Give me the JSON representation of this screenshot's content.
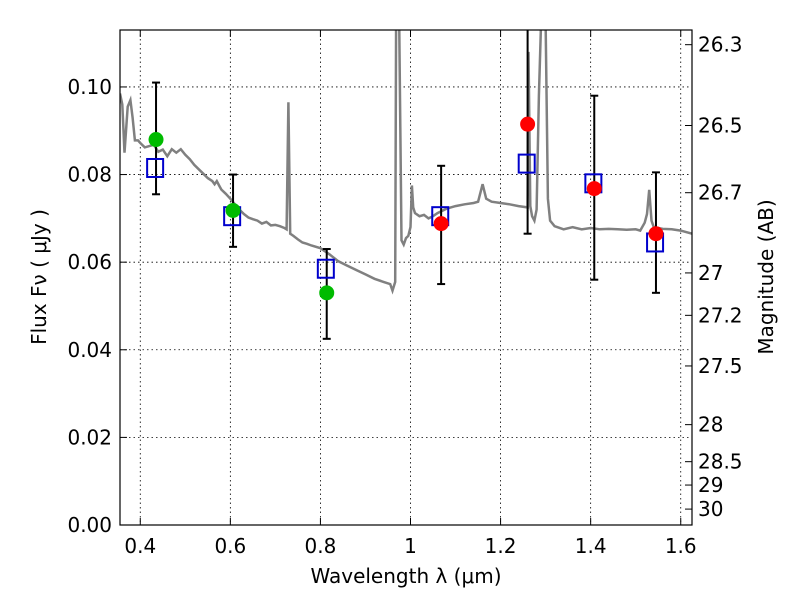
{
  "chart_data": {
    "type": "scatter",
    "xlabel": "Wavelength  λ (μm)",
    "ylabel": "Flux  Fν ( μJy )",
    "ylabel_right": "Magnitude (AB)",
    "xlim": [
      0.355,
      1.625
    ],
    "ylim": [
      0.0,
      0.113
    ],
    "x_ticks": [
      0.4,
      0.6,
      0.8,
      1.0,
      1.2,
      1.4,
      1.6
    ],
    "x_tick_labels": [
      "0.4",
      "0.6",
      "0.8",
      "1",
      "1.2",
      "1.4",
      "1.6"
    ],
    "y_ticks": [
      0.0,
      0.02,
      0.04,
      0.06,
      0.08,
      0.1
    ],
    "y_tick_labels": [
      "0.00",
      "0.02",
      "0.04",
      "0.06",
      "0.08",
      "0.10"
    ],
    "right_ticks": [
      {
        "mag": 26.3,
        "label": "26.3"
      },
      {
        "mag": 26.5,
        "label": "26.5"
      },
      {
        "mag": 26.7,
        "label": "26.7"
      },
      {
        "mag": 27.0,
        "label": "27"
      },
      {
        "mag": 27.2,
        "label": "27.2"
      },
      {
        "mag": 27.5,
        "label": "27.5"
      },
      {
        "mag": 28.0,
        "label": "28"
      },
      {
        "mag": 28.5,
        "label": "28.5"
      },
      {
        "mag": 29.0,
        "label": "29"
      },
      {
        "mag": 30.0,
        "label": "30"
      }
    ],
    "grid": true,
    "colors": {
      "model": "#808080",
      "green": "#00bb00",
      "red": "#ff0000",
      "square": "#0000cc",
      "errorbar": "#000000"
    },
    "observed_points": [
      {
        "x": 0.435,
        "y": 0.088,
        "yerr_low": 0.0755,
        "yerr_high": 0.101,
        "color": "green"
      },
      {
        "x": 0.606,
        "y": 0.0718,
        "yerr_low": 0.0635,
        "yerr_high": 0.08,
        "color": "green"
      },
      {
        "x": 0.814,
        "y": 0.053,
        "yerr_low": 0.0425,
        "yerr_high": 0.063,
        "color": "green"
      },
      {
        "x": 1.068,
        "y": 0.0688,
        "yerr_low": 0.055,
        "yerr_high": 0.082,
        "color": "red"
      },
      {
        "x": 1.26,
        "y": 0.0915,
        "yerr_low": 0.0665,
        "yerr_high": 0.116,
        "color": "red"
      },
      {
        "x": 1.408,
        "y": 0.0768,
        "yerr_low": 0.056,
        "yerr_high": 0.098,
        "color": "red"
      },
      {
        "x": 1.545,
        "y": 0.0665,
        "yerr_low": 0.053,
        "yerr_high": 0.0805,
        "color": "red"
      }
    ],
    "model_points": [
      {
        "x": 0.433,
        "y": 0.0815
      },
      {
        "x": 0.604,
        "y": 0.0705
      },
      {
        "x": 0.812,
        "y": 0.0585
      },
      {
        "x": 1.066,
        "y": 0.0705
      },
      {
        "x": 1.258,
        "y": 0.0825
      },
      {
        "x": 1.406,
        "y": 0.078
      },
      {
        "x": 1.543,
        "y": 0.0645
      }
    ],
    "model_spectrum": [
      [
        0.355,
        0.0985
      ],
      [
        0.36,
        0.096
      ],
      [
        0.365,
        0.085
      ],
      [
        0.372,
        0.0955
      ],
      [
        0.378,
        0.097
      ],
      [
        0.383,
        0.093
      ],
      [
        0.388,
        0.0878
      ],
      [
        0.395,
        0.0878
      ],
      [
        0.4,
        0.0872
      ],
      [
        0.41,
        0.0862
      ],
      [
        0.42,
        0.0865
      ],
      [
        0.43,
        0.0868
      ],
      [
        0.44,
        0.0852
      ],
      [
        0.45,
        0.0857
      ],
      [
        0.46,
        0.0842
      ],
      [
        0.47,
        0.0858
      ],
      [
        0.48,
        0.085
      ],
      [
        0.49,
        0.0858
      ],
      [
        0.5,
        0.0845
      ],
      [
        0.51,
        0.0835
      ],
      [
        0.52,
        0.0822
      ],
      [
        0.53,
        0.0812
      ],
      [
        0.54,
        0.0802
      ],
      [
        0.55,
        0.0792
      ],
      [
        0.56,
        0.0785
      ],
      [
        0.565,
        0.0778
      ],
      [
        0.57,
        0.0785
      ],
      [
        0.575,
        0.0775
      ],
      [
        0.58,
        0.0766
      ],
      [
        0.59,
        0.0756
      ],
      [
        0.6,
        0.0745
      ],
      [
        0.61,
        0.0732
      ],
      [
        0.62,
        0.072
      ],
      [
        0.63,
        0.071
      ],
      [
        0.64,
        0.0702
      ],
      [
        0.65,
        0.0698
      ],
      [
        0.66,
        0.0695
      ],
      [
        0.67,
        0.0688
      ],
      [
        0.68,
        0.0692
      ],
      [
        0.69,
        0.0684
      ],
      [
        0.7,
        0.0685
      ],
      [
        0.71,
        0.0682
      ],
      [
        0.72,
        0.0678
      ],
      [
        0.725,
        0.0675
      ],
      [
        0.729,
        0.0965
      ],
      [
        0.733,
        0.0665
      ],
      [
        0.74,
        0.066
      ],
      [
        0.75,
        0.0652
      ],
      [
        0.76,
        0.0645
      ],
      [
        0.77,
        0.0642
      ],
      [
        0.78,
        0.0638
      ],
      [
        0.8,
        0.0632
      ],
      [
        0.82,
        0.0618
      ],
      [
        0.84,
        0.0602
      ],
      [
        0.86,
        0.0592
      ],
      [
        0.88,
        0.0582
      ],
      [
        0.9,
        0.0572
      ],
      [
        0.92,
        0.0562
      ],
      [
        0.94,
        0.0555
      ],
      [
        0.955,
        0.055
      ],
      [
        0.96,
        0.0535
      ],
      [
        0.966,
        0.0555
      ],
      [
        0.968,
        0.115
      ],
      [
        0.975,
        0.115
      ],
      [
        0.98,
        0.065
      ],
      [
        0.985,
        0.064
      ],
      [
        0.99,
        0.0655
      ],
      [
        0.995,
        0.066
      ],
      [
        1.0,
        0.068
      ],
      [
        1.003,
        0.0775
      ],
      [
        1.006,
        0.0725
      ],
      [
        1.01,
        0.0712
      ],
      [
        1.02,
        0.0705
      ],
      [
        1.03,
        0.0708
      ],
      [
        1.04,
        0.07
      ],
      [
        1.05,
        0.0705
      ],
      [
        1.06,
        0.0712
      ],
      [
        1.08,
        0.0722
      ],
      [
        1.1,
        0.0728
      ],
      [
        1.12,
        0.0732
      ],
      [
        1.14,
        0.0735
      ],
      [
        1.15,
        0.0738
      ],
      [
        1.16,
        0.0778
      ],
      [
        1.168,
        0.0745
      ],
      [
        1.18,
        0.0738
      ],
      [
        1.2,
        0.0735
      ],
      [
        1.22,
        0.0732
      ],
      [
        1.24,
        0.0728
      ],
      [
        1.26,
        0.0725
      ],
      [
        1.262,
        0.108
      ],
      [
        1.266,
        0.0728
      ],
      [
        1.27,
        0.0705
      ],
      [
        1.275,
        0.0695
      ],
      [
        1.28,
        0.072
      ],
      [
        1.285,
        0.098
      ],
      [
        1.29,
        0.115
      ],
      [
        1.3,
        0.115
      ],
      [
        1.305,
        0.0745
      ],
      [
        1.31,
        0.0695
      ],
      [
        1.32,
        0.0682
      ],
      [
        1.34,
        0.0675
      ],
      [
        1.36,
        0.068
      ],
      [
        1.38,
        0.0675
      ],
      [
        1.4,
        0.0678
      ],
      [
        1.42,
        0.0675
      ],
      [
        1.44,
        0.0676
      ],
      [
        1.46,
        0.0675
      ],
      [
        1.48,
        0.0674
      ],
      [
        1.5,
        0.0675
      ],
      [
        1.51,
        0.0672
      ],
      [
        1.52,
        0.069
      ],
      [
        1.525,
        0.071
      ],
      [
        1.53,
        0.0765
      ],
      [
        1.535,
        0.0695
      ],
      [
        1.54,
        0.068
      ],
      [
        1.56,
        0.0676
      ],
      [
        1.58,
        0.0675
      ],
      [
        1.6,
        0.0672
      ],
      [
        1.625,
        0.0665
      ]
    ]
  }
}
